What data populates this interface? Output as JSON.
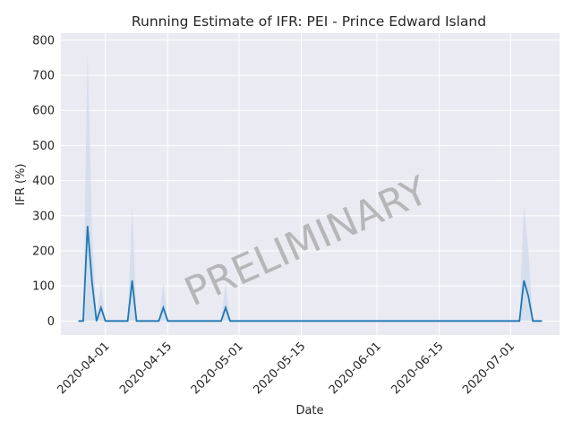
{
  "chart_data": {
    "type": "line",
    "title": "Running Estimate of IFR: PEI - Prince Edward Island",
    "xlabel": "Date",
    "ylabel": "IFR (%)",
    "watermark": "PRELIMINARY",
    "grid": true,
    "x_range": [
      "2020-03-22",
      "2020-07-12"
    ],
    "ylim": [
      -40,
      820
    ],
    "x_ticks": [
      "2020-04-01",
      "2020-04-15",
      "2020-05-01",
      "2020-05-15",
      "2020-06-01",
      "2020-06-15",
      "2020-07-01"
    ],
    "y_ticks": [
      0,
      100,
      200,
      300,
      400,
      500,
      600,
      700,
      800
    ],
    "colors": {
      "line": "#1f77b4",
      "band": "#c6d6ea",
      "background": "#eaeaf2",
      "grid": "#ffffff"
    },
    "series": [
      {
        "x": [
          "2020-03-26",
          "2020-03-27",
          "2020-03-28",
          "2020-03-29",
          "2020-03-30",
          "2020-03-31",
          "2020-04-01",
          "2020-04-02",
          "2020-04-03",
          "2020-04-06",
          "2020-04-07",
          "2020-04-08",
          "2020-04-09",
          "2020-04-13",
          "2020-04-14",
          "2020-04-15",
          "2020-04-27",
          "2020-04-28",
          "2020-04-29",
          "2020-07-03",
          "2020-07-04",
          "2020-07-05",
          "2020-07-06",
          "2020-07-08"
        ],
        "y": [
          0,
          0,
          270,
          110,
          0,
          38,
          0,
          0,
          0,
          0,
          115,
          0,
          0,
          0,
          38,
          0,
          0,
          38,
          0,
          0,
          115,
          70,
          0,
          0
        ],
        "lower": [
          0,
          0,
          0,
          0,
          0,
          0,
          0,
          0,
          0,
          0,
          0,
          0,
          0,
          0,
          0,
          0,
          0,
          0,
          0,
          0,
          0,
          0,
          0,
          0
        ],
        "upper": [
          0,
          0,
          770,
          260,
          0,
          110,
          0,
          0,
          0,
          0,
          330,
          0,
          0,
          0,
          110,
          0,
          0,
          110,
          0,
          0,
          330,
          200,
          0,
          0
        ]
      }
    ]
  }
}
